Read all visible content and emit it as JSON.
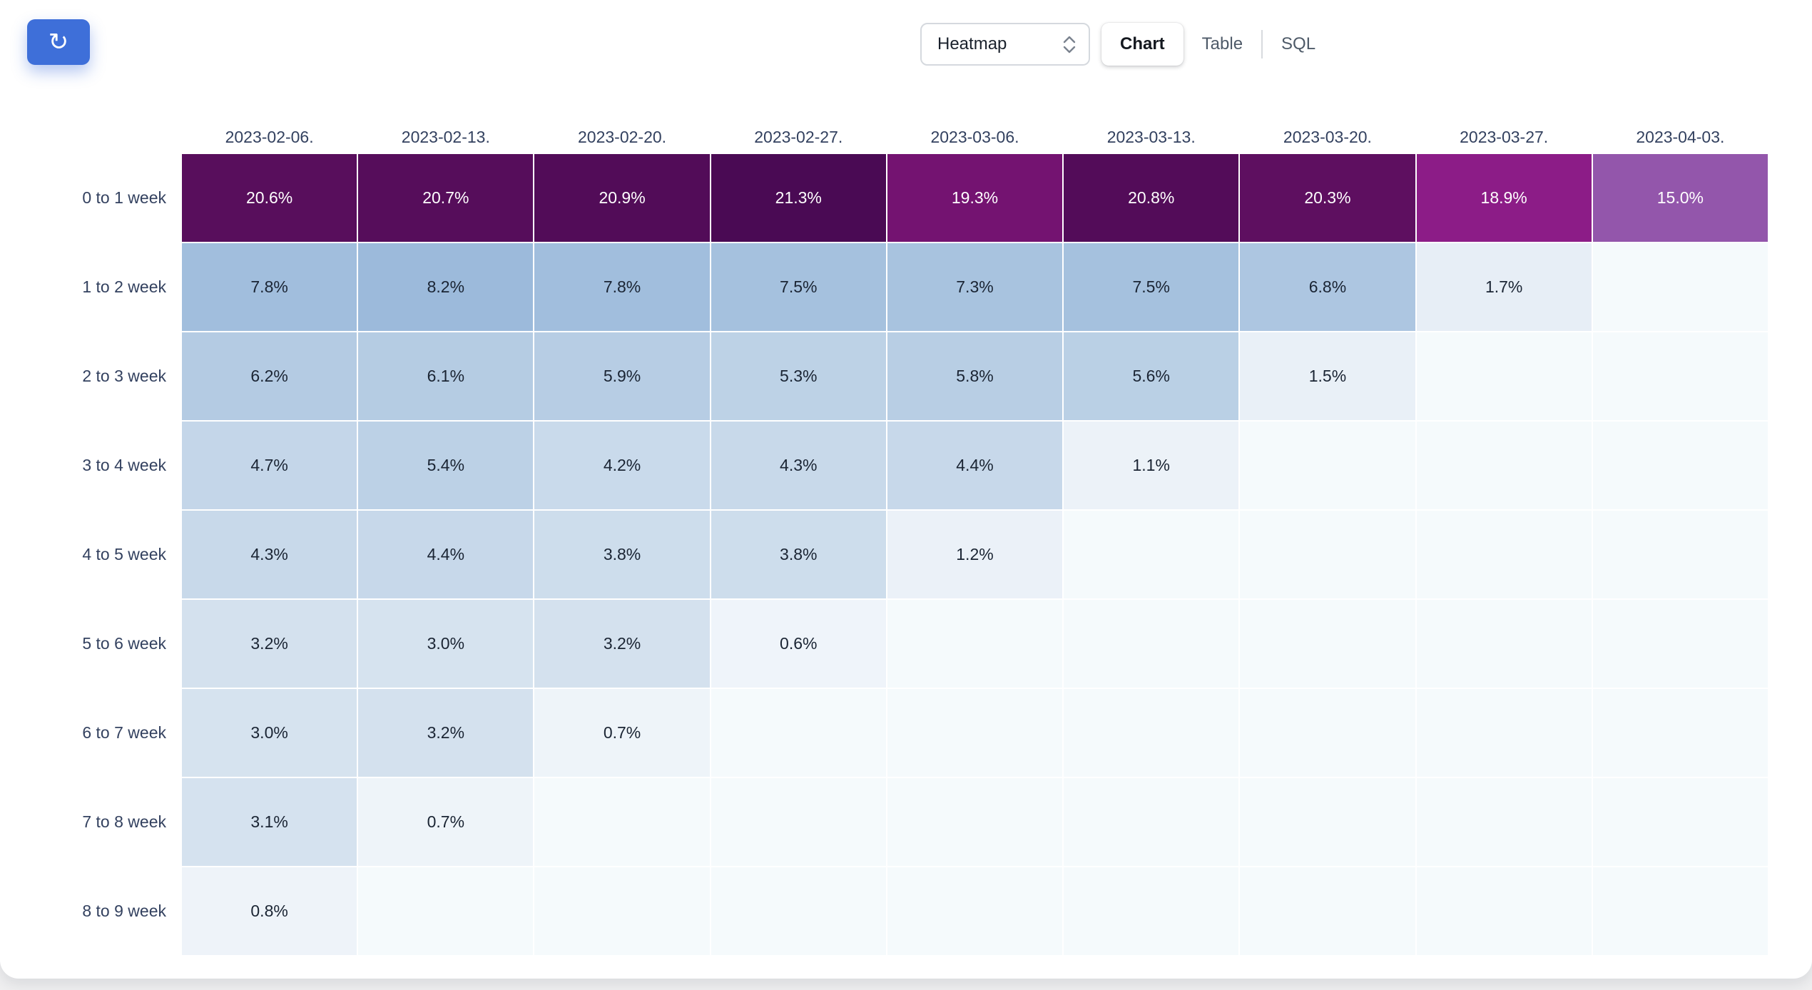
{
  "toolbar": {
    "refresh_icon": "↻",
    "select": {
      "value": "Heatmap"
    },
    "tabs": [
      {
        "label": "Chart",
        "active": true
      },
      {
        "label": "Table",
        "active": false
      },
      {
        "label": "SQL",
        "active": false
      }
    ],
    "accent_color": "#3e6fd9"
  },
  "chart_data": {
    "type": "heatmap",
    "title": "",
    "xlabel": "",
    "ylabel": "",
    "value_format": "percent_one_decimal",
    "legend": "off",
    "grid": "off",
    "x_labels": [
      "2023-02-06.",
      "2023-02-13.",
      "2023-02-20.",
      "2023-02-27.",
      "2023-03-06.",
      "2023-03-13.",
      "2023-03-20.",
      "2023-03-27.",
      "2023-04-03."
    ],
    "y_labels": [
      "0 to 1 week",
      "1 to 2 week",
      "2 to 3 week",
      "3 to 4 week",
      "4 to 5 week",
      "5 to 6 week",
      "6 to 7 week",
      "7 to 8 week",
      "8 to 9 week"
    ],
    "values": [
      [
        20.6,
        20.7,
        20.9,
        21.3,
        19.3,
        20.8,
        20.3,
        18.9,
        15.0
      ],
      [
        7.8,
        8.2,
        7.8,
        7.5,
        7.3,
        7.5,
        6.8,
        1.7,
        null
      ],
      [
        6.2,
        6.1,
        5.9,
        5.3,
        5.8,
        5.6,
        1.5,
        null,
        null
      ],
      [
        4.7,
        5.4,
        4.2,
        4.3,
        4.4,
        1.1,
        null,
        null,
        null
      ],
      [
        4.3,
        4.4,
        3.8,
        3.8,
        1.2,
        null,
        null,
        null,
        null
      ],
      [
        3.2,
        3.0,
        3.2,
        0.6,
        null,
        null,
        null,
        null,
        null
      ],
      [
        3.0,
        3.2,
        0.7,
        null,
        null,
        null,
        null,
        null,
        null
      ],
      [
        3.1,
        0.7,
        null,
        null,
        null,
        null,
        null,
        null,
        null
      ],
      [
        0.8,
        null,
        null,
        null,
        null,
        null,
        null,
        null,
        null
      ]
    ],
    "cell_colors": [
      [
        "#580e5c",
        "#560d5b",
        "#520c58",
        "#4a0a54",
        "#741371",
        "#530c59",
        "#5e0f60",
        "#8c1c87",
        "#9356ab"
      ],
      [
        "#a1bedd",
        "#9cbadb",
        "#a1bedd",
        "#a5c1de",
        "#a8c3df",
        "#a5c1de",
        "#adc6e1",
        "#e7eef6",
        "#f5fafc"
      ],
      [
        "#b4cbe3",
        "#b5cce3",
        "#b7cde4",
        "#bdd2e6",
        "#b8cee4",
        "#bad0e5",
        "#e9f0f7",
        "#f5fafc",
        "#f5fafc"
      ],
      [
        "#c4d6e9",
        "#bcd1e6",
        "#c9daeb",
        "#c8d9ea",
        "#c7d8ea",
        "#ecf2f8",
        "#f5fafc",
        "#f5fafc",
        "#f5fafc"
      ],
      [
        "#c8d9ea",
        "#c7d8ea",
        "#cdddec",
        "#cdddec",
        "#ebf1f8",
        "#f5fafc",
        "#f5fafc",
        "#f5fafc",
        "#f5fafc"
      ],
      [
        "#d4e1ee",
        "#d6e3ef",
        "#d4e1ee",
        "#eff4fa",
        "#f5fafc",
        "#f5fafc",
        "#f5fafc",
        "#f5fafc",
        "#f5fafc"
      ],
      [
        "#d6e3ef",
        "#d4e1ee",
        "#eef4f9",
        "#f5fafc",
        "#f5fafc",
        "#f5fafc",
        "#f5fafc",
        "#f5fafc",
        "#f5fafc"
      ],
      [
        "#d5e2ef",
        "#eef4f9",
        "#f5fafc",
        "#f5fafc",
        "#f5fafc",
        "#f5fafc",
        "#f5fafc",
        "#f5fafc",
        "#f5fafc"
      ],
      [
        "#eef3f9",
        "#f5fafc",
        "#f5fafc",
        "#f5fafc",
        "#f5fafc",
        "#f5fafc",
        "#f5fafc",
        "#f5fafc",
        "#f5fafc"
      ]
    ]
  }
}
